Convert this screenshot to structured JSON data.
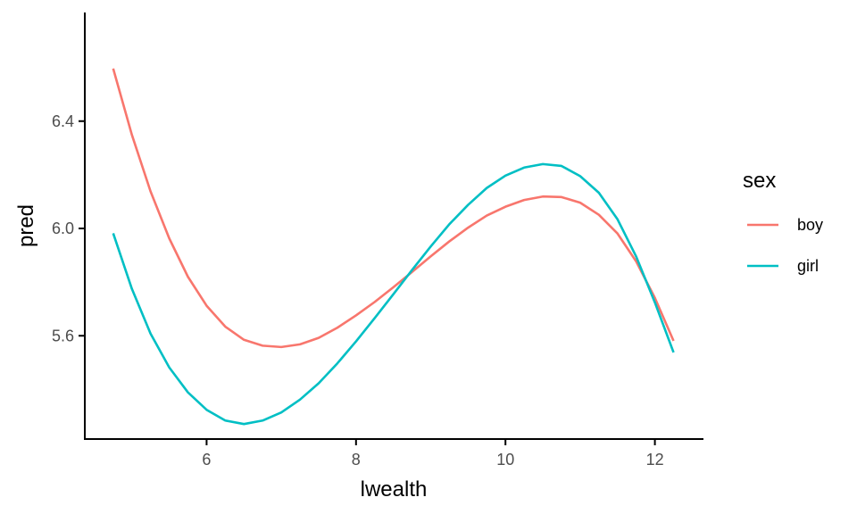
{
  "chart_data": {
    "type": "line",
    "xlabel": "lwealth",
    "ylabel": "pred",
    "xlim": [
      4.37,
      12.65
    ],
    "ylim": [
      5.215,
      6.805
    ],
    "x_ticks": [
      6,
      8,
      10,
      12
    ],
    "y_ticks": [
      5.6,
      6.0,
      6.4
    ],
    "x_tick_labels": [
      "6",
      "8",
      "10",
      "12"
    ],
    "y_tick_labels": [
      "5.6",
      "6.0",
      "6.4"
    ],
    "grid": false,
    "legend_title": "sex",
    "legend_position": "right",
    "series": [
      {
        "name": "boy",
        "color": "#F8766D",
        "x": [
          4.75,
          5.0,
          5.25,
          5.5,
          5.75,
          6.0,
          6.25,
          6.5,
          6.75,
          7.0,
          7.25,
          7.5,
          7.75,
          8.0,
          8.25,
          8.5,
          8.75,
          9.0,
          9.25,
          9.5,
          9.75,
          10.0,
          10.25,
          10.5,
          10.75,
          11.0,
          11.25,
          11.5,
          11.75,
          12.0,
          12.25
        ],
        "values": [
          6.596,
          6.349,
          6.138,
          5.963,
          5.82,
          5.712,
          5.634,
          5.585,
          5.563,
          5.558,
          5.568,
          5.592,
          5.63,
          5.676,
          5.726,
          5.781,
          5.838,
          5.896,
          5.952,
          6.003,
          6.048,
          6.081,
          6.106,
          6.119,
          6.117,
          6.096,
          6.051,
          5.981,
          5.877,
          5.741,
          5.581
        ]
      },
      {
        "name": "girl",
        "color": "#00BFC4",
        "x": [
          4.75,
          5.0,
          5.25,
          5.5,
          5.75,
          6.0,
          6.25,
          6.5,
          6.75,
          7.0,
          7.25,
          7.5,
          7.75,
          8.0,
          8.25,
          8.5,
          8.75,
          9.0,
          9.25,
          9.5,
          9.75,
          10.0,
          10.25,
          10.5,
          10.75,
          11.0,
          11.25,
          11.5,
          11.75,
          12.0,
          12.25
        ],
        "values": [
          5.982,
          5.775,
          5.608,
          5.482,
          5.389,
          5.324,
          5.284,
          5.271,
          5.284,
          5.314,
          5.362,
          5.423,
          5.497,
          5.579,
          5.666,
          5.755,
          5.845,
          5.933,
          6.016,
          6.088,
          6.151,
          6.197,
          6.227,
          6.24,
          6.233,
          6.195,
          6.133,
          6.034,
          5.895,
          5.724,
          5.538
        ]
      }
    ]
  }
}
